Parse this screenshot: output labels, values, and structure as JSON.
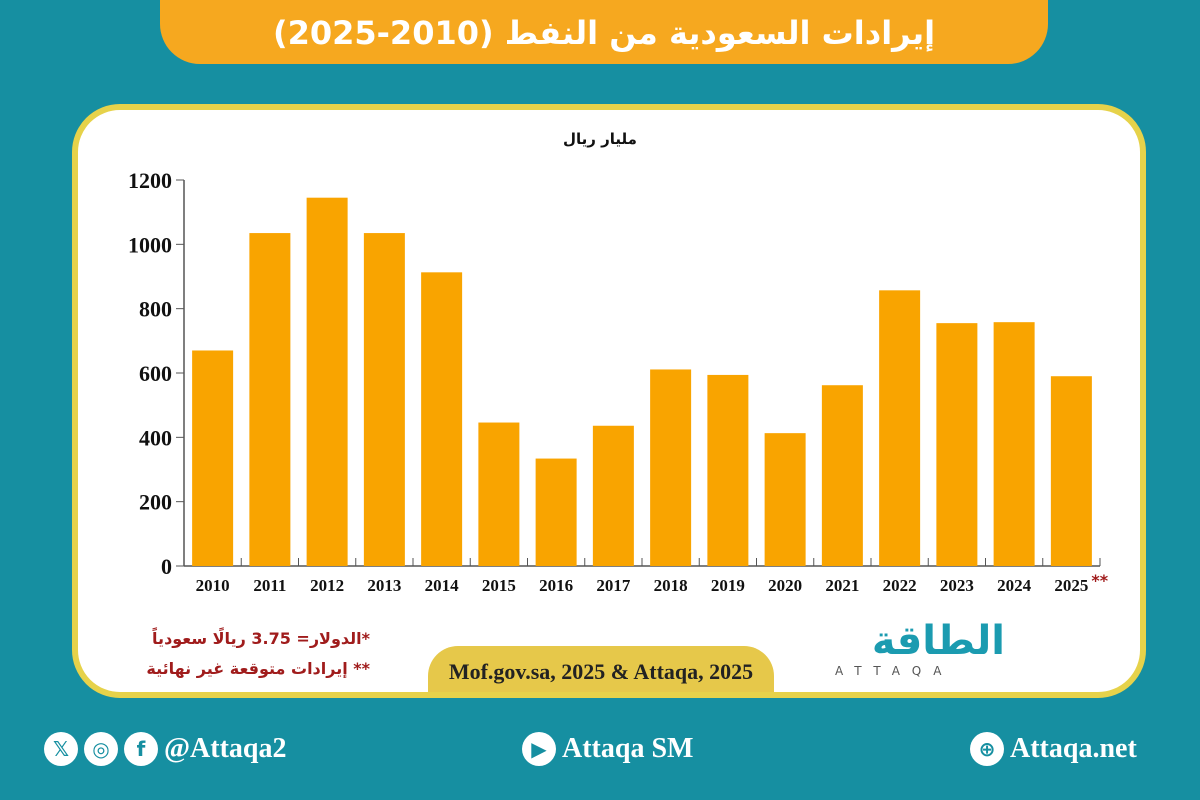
{
  "title": "إيرادات السعودية من النفط (2010-2025)",
  "chart_data": {
    "type": "bar",
    "title": "إيرادات السعودية من النفط (2010-2025)",
    "ylabel": "مليار ريال",
    "xlabel": "",
    "categories": [
      "2010",
      "2011",
      "2012",
      "2013",
      "2014",
      "2015",
      "2016",
      "2017",
      "2018",
      "2019",
      "2020",
      "2021",
      "2022",
      "2023",
      "2024",
      "2025"
    ],
    "category_marks": [
      "",
      "",
      "",
      "",
      "",
      "",
      "",
      "",
      "",
      "",
      "",
      "",
      "",
      "",
      "",
      "**"
    ],
    "values": [
      670,
      1035,
      1145,
      1035,
      913,
      446,
      334,
      436,
      611,
      594,
      413,
      562,
      857,
      755,
      758,
      590
    ],
    "ylim": [
      0,
      1200
    ],
    "yticks": [
      "0",
      "200",
      "400",
      "600",
      "800",
      "1000",
      "1200"
    ],
    "grid": false,
    "bar_color": "#f9a400"
  },
  "notes": [
    "*الدولار= 3.75 ريالًا سعودياً",
    "** إيرادات متوقعة غير نهائية"
  ],
  "source": "Mof.gov.sa, 2025 & Attaqa, 2025",
  "logo": {
    "ar": "الطاقة",
    "en": "ATTAQA"
  },
  "footer": {
    "social": "@Attaqa2",
    "youtube": "Attaqa SM",
    "web": "Attaqa.net"
  },
  "colors": {
    "background": "#168fa1",
    "title_bar": "#f6a81f",
    "card_border": "#e6d24a",
    "notes": "#a01c1c"
  }
}
